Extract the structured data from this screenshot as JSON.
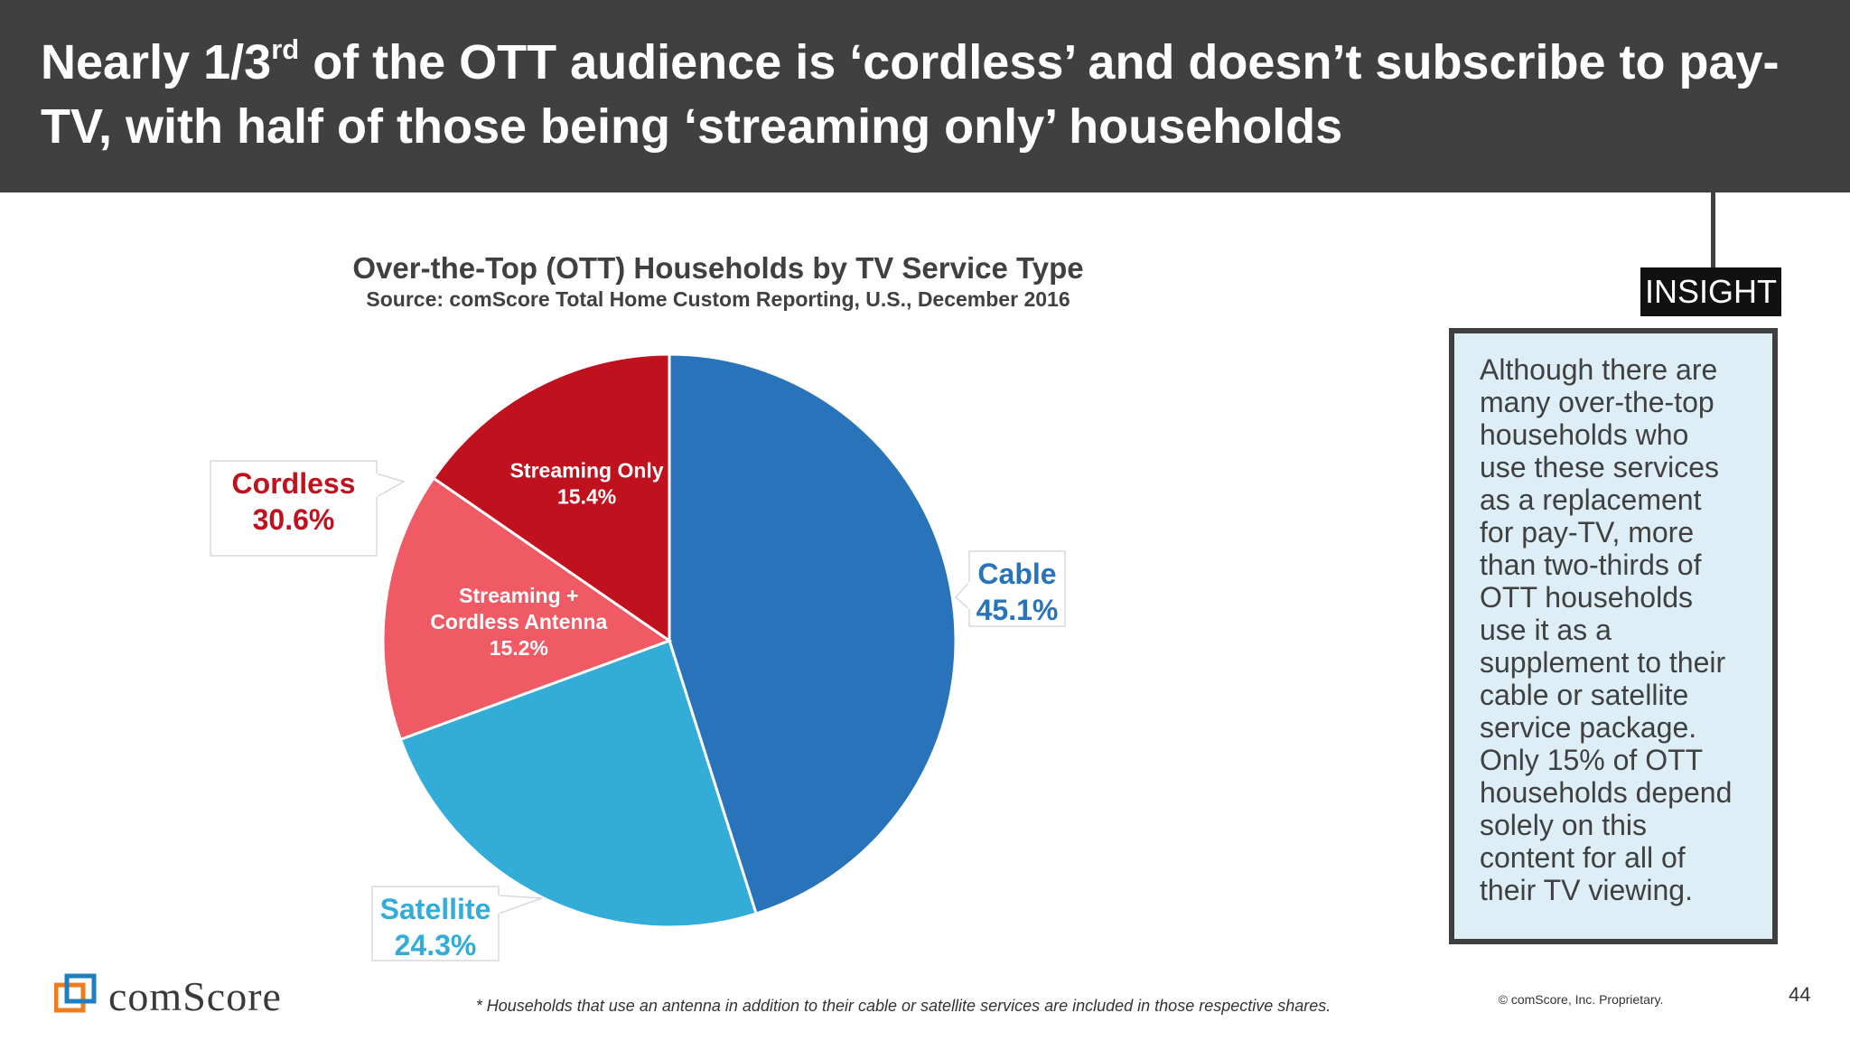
{
  "header": {
    "title_pre": "Nearly 1/3",
    "title_sup": "rd",
    "title_post": " of the OTT audience is ‘cordless’ and doesn’t subscribe to pay-TV, with half of those being ‘streaming only’ households"
  },
  "chart_data": {
    "type": "pie",
    "title": "Over-the-Top (OTT) Households by TV Service Type",
    "subtitle": "Source: comScore Total Home Custom Reporting, U.S., December 2016",
    "slices": [
      {
        "name": "Cable",
        "value": 45.1,
        "label": "45.1%",
        "color": "#2873b9"
      },
      {
        "name": "Satellite",
        "value": 24.3,
        "label": "24.3%",
        "color": "#33acd8"
      },
      {
        "name_lines": [
          "Streaming +",
          "Cordless Antenna"
        ],
        "value": 15.2,
        "label": "15.2%",
        "color": "#ef5a64"
      },
      {
        "name": "Streaming Only",
        "value": 15.4,
        "label": "15.4%",
        "color": "#c0111f"
      }
    ],
    "group_callout": {
      "name": "Cordless",
      "label": "30.6%",
      "color": "#c0111f"
    }
  },
  "insight": {
    "tag": "INSIGHT",
    "lines": [
      "Although there are",
      "many over-the-top",
      "households who",
      "use these services",
      "as a replacement",
      "for pay-TV, more",
      "than two-thirds of",
      "OTT households",
      "use it as a",
      "supplement to their",
      "cable or satellite",
      "service package.",
      "Only 15% of OTT",
      "households depend",
      "solely on this",
      "content for all of",
      "their TV viewing."
    ]
  },
  "footer": {
    "logo_text": "comScore",
    "footnote": "* Households that use an antenna in addition to their cable or satellite services are included in those respective shares.",
    "copyright": "© comScore, Inc. Proprietary.",
    "page_number": "44"
  }
}
